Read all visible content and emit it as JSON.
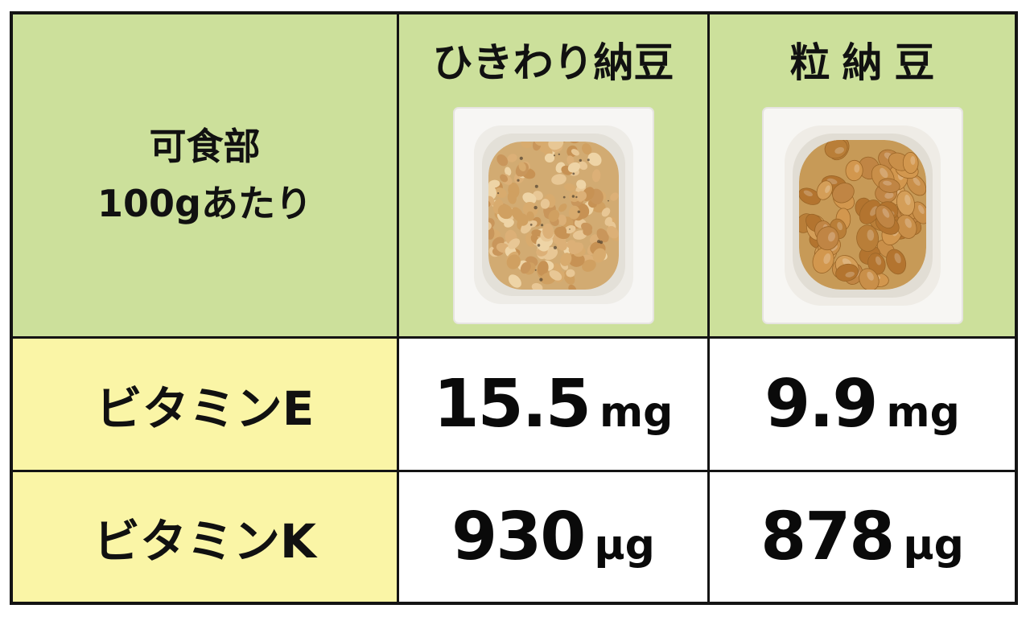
{
  "table": {
    "corner": {
      "line1": "可食部",
      "line2": "100gあたり"
    },
    "columns": [
      {
        "label": "ひきわり納豆",
        "image": "hikiwari-natto-photo"
      },
      {
        "label": "粒納豆",
        "image": "tsubu-natto-photo"
      }
    ],
    "rows": [
      {
        "label": "ビタミンE",
        "values": [
          {
            "num": "15.5",
            "unit": "mg"
          },
          {
            "num": "9.9",
            "unit": "mg"
          }
        ]
      },
      {
        "label": "ビタミンK",
        "values": [
          {
            "num": "930",
            "unit": "μg"
          },
          {
            "num": "878",
            "unit": "μg"
          }
        ]
      }
    ]
  },
  "colors": {
    "header_green": "#cce09b",
    "label_yellow": "#faf5a6",
    "border_black": "#141414",
    "cell_white": "#ffffff",
    "text_black": "#111111"
  },
  "chart_data": {
    "type": "table",
    "title": "",
    "corner_label": "可食部100gあたり",
    "columns": [
      "ひきわり納豆",
      "粒納豆"
    ],
    "rows": [
      {
        "label": "ビタミンE",
        "values": [
          "15.5 mg",
          "9.9 mg"
        ]
      },
      {
        "label": "ビタミンK",
        "values": [
          "930 μg",
          "878 μg"
        ]
      }
    ],
    "layout_hints": {
      "header_fill": "#cce09b",
      "row_label_fill": "#faf5a6",
      "grid": "on"
    }
  }
}
